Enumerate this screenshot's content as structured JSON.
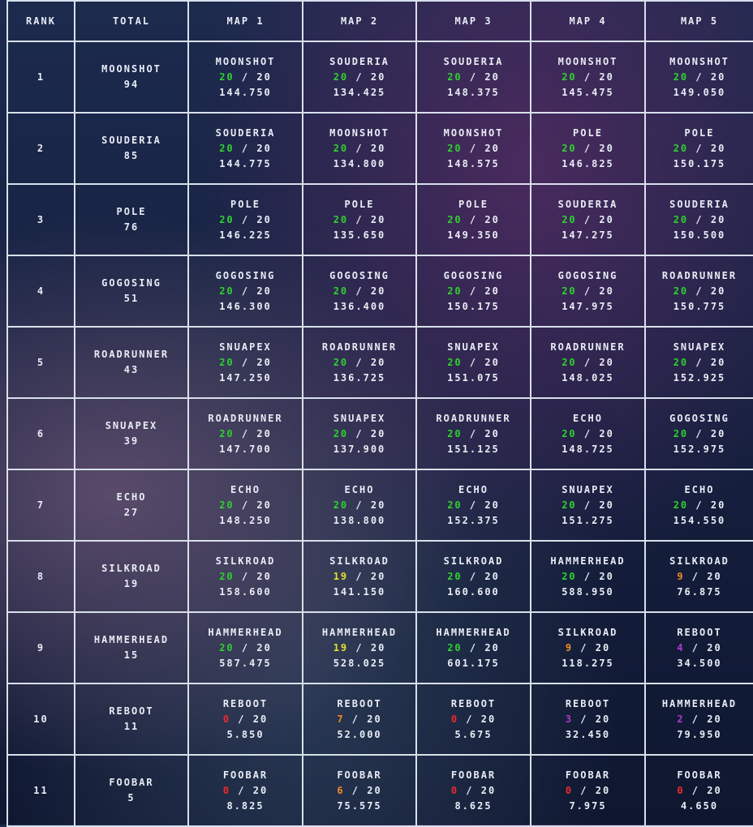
{
  "header": [
    "RANK",
    "TOTAL",
    "MAP 1",
    "MAP 2",
    "MAP 3",
    "MAP 4",
    "MAP 5"
  ],
  "rows": [
    {
      "rank": 1,
      "team": "MOONSHOT",
      "points": 94,
      "maps": [
        {
          "team": "MOONSHOT",
          "score": 20,
          "score_color": "#2fd12f",
          "of": "/ 20",
          "time": "144.750"
        },
        {
          "team": "SOUDERIA",
          "score": 20,
          "score_color": "#2fd12f",
          "of": "/ 20",
          "time": "134.425"
        },
        {
          "team": "SOUDERIA",
          "score": 20,
          "score_color": "#2fd12f",
          "of": "/ 20",
          "time": "148.375"
        },
        {
          "team": "MOONSHOT",
          "score": 20,
          "score_color": "#2fd12f",
          "of": "/ 20",
          "time": "145.475"
        },
        {
          "team": "MOONSHOT",
          "score": 20,
          "score_color": "#2fd12f",
          "of": "/ 20",
          "time": "149.050"
        }
      ]
    },
    {
      "rank": 2,
      "team": "SOUDERIA",
      "points": 85,
      "maps": [
        {
          "team": "SOUDERIA",
          "score": 20,
          "score_color": "#2fd12f",
          "of": "/ 20",
          "time": "144.775"
        },
        {
          "team": "MOONSHOT",
          "score": 20,
          "score_color": "#2fd12f",
          "of": "/ 20",
          "time": "134.800"
        },
        {
          "team": "MOONSHOT",
          "score": 20,
          "score_color": "#2fd12f",
          "of": "/ 20",
          "time": "148.575"
        },
        {
          "team": "POLE",
          "score": 20,
          "score_color": "#2fd12f",
          "of": "/ 20",
          "time": "146.825"
        },
        {
          "team": "POLE",
          "score": 20,
          "score_color": "#2fd12f",
          "of": "/ 20",
          "time": "150.175"
        }
      ]
    },
    {
      "rank": 3,
      "team": "POLE",
      "points": 76,
      "maps": [
        {
          "team": "POLE",
          "score": 20,
          "score_color": "#2fd12f",
          "of": "/ 20",
          "time": "146.225"
        },
        {
          "team": "POLE",
          "score": 20,
          "score_color": "#2fd12f",
          "of": "/ 20",
          "time": "135.650"
        },
        {
          "team": "POLE",
          "score": 20,
          "score_color": "#2fd12f",
          "of": "/ 20",
          "time": "149.350"
        },
        {
          "team": "SOUDERIA",
          "score": 20,
          "score_color": "#2fd12f",
          "of": "/ 20",
          "time": "147.275"
        },
        {
          "team": "SOUDERIA",
          "score": 20,
          "score_color": "#2fd12f",
          "of": "/ 20",
          "time": "150.500"
        }
      ]
    },
    {
      "rank": 4,
      "team": "GOGOSING",
      "points": 51,
      "maps": [
        {
          "team": "GOGOSING",
          "score": 20,
          "score_color": "#2fd12f",
          "of": "/ 20",
          "time": "146.300"
        },
        {
          "team": "GOGOSING",
          "score": 20,
          "score_color": "#2fd12f",
          "of": "/ 20",
          "time": "136.400"
        },
        {
          "team": "GOGOSING",
          "score": 20,
          "score_color": "#2fd12f",
          "of": "/ 20",
          "time": "150.175"
        },
        {
          "team": "GOGOSING",
          "score": 20,
          "score_color": "#2fd12f",
          "of": "/ 20",
          "time": "147.975"
        },
        {
          "team": "ROADRUNNER",
          "score": 20,
          "score_color": "#2fd12f",
          "of": "/ 20",
          "time": "150.775"
        }
      ]
    },
    {
      "rank": 5,
      "team": "ROADRUNNER",
      "points": 43,
      "maps": [
        {
          "team": "SNUAPEX",
          "score": 20,
          "score_color": "#2fd12f",
          "of": "/ 20",
          "time": "147.250"
        },
        {
          "team": "ROADRUNNER",
          "score": 20,
          "score_color": "#2fd12f",
          "of": "/ 20",
          "time": "136.725"
        },
        {
          "team": "SNUAPEX",
          "score": 20,
          "score_color": "#2fd12f",
          "of": "/ 20",
          "time": "151.075"
        },
        {
          "team": "ROADRUNNER",
          "score": 20,
          "score_color": "#2fd12f",
          "of": "/ 20",
          "time": "148.025"
        },
        {
          "team": "SNUAPEX",
          "score": 20,
          "score_color": "#2fd12f",
          "of": "/ 20",
          "time": "152.925"
        }
      ]
    },
    {
      "rank": 6,
      "team": "SNUAPEX",
      "points": 39,
      "maps": [
        {
          "team": "ROADRUNNER",
          "score": 20,
          "score_color": "#2fd12f",
          "of": "/ 20",
          "time": "147.700"
        },
        {
          "team": "SNUAPEX",
          "score": 20,
          "score_color": "#2fd12f",
          "of": "/ 20",
          "time": "137.900"
        },
        {
          "team": "ROADRUNNER",
          "score": 20,
          "score_color": "#2fd12f",
          "of": "/ 20",
          "time": "151.125"
        },
        {
          "team": "ECHO",
          "score": 20,
          "score_color": "#2fd12f",
          "of": "/ 20",
          "time": "148.725"
        },
        {
          "team": "GOGOSING",
          "score": 20,
          "score_color": "#2fd12f",
          "of": "/ 20",
          "time": "152.975"
        }
      ]
    },
    {
      "rank": 7,
      "team": "ECHO",
      "points": 27,
      "maps": [
        {
          "team": "ECHO",
          "score": 20,
          "score_color": "#2fd12f",
          "of": "/ 20",
          "time": "148.250"
        },
        {
          "team": "ECHO",
          "score": 20,
          "score_color": "#2fd12f",
          "of": "/ 20",
          "time": "138.800"
        },
        {
          "team": "ECHO",
          "score": 20,
          "score_color": "#2fd12f",
          "of": "/ 20",
          "time": "152.375"
        },
        {
          "team": "SNUAPEX",
          "score": 20,
          "score_color": "#2fd12f",
          "of": "/ 20",
          "time": "151.275"
        },
        {
          "team": "ECHO",
          "score": 20,
          "score_color": "#2fd12f",
          "of": "/ 20",
          "time": "154.550"
        }
      ]
    },
    {
      "rank": 8,
      "team": "SILKROAD",
      "points": 19,
      "maps": [
        {
          "team": "SILKROAD",
          "score": 20,
          "score_color": "#2fd12f",
          "of": "/ 20",
          "time": "158.600"
        },
        {
          "team": "SILKROAD",
          "score": 19,
          "score_color": "#e4e22a",
          "of": "/ 20",
          "time": "141.150"
        },
        {
          "team": "SILKROAD",
          "score": 20,
          "score_color": "#2fd12f",
          "of": "/ 20",
          "time": "160.600"
        },
        {
          "team": "HAMMERHEAD",
          "score": 20,
          "score_color": "#2fd12f",
          "of": "/ 20",
          "time": "588.950"
        },
        {
          "team": "SILKROAD",
          "score": 9,
          "score_color": "#f08a2a",
          "of": "/ 20",
          "time": "76.875"
        }
      ]
    },
    {
      "rank": 9,
      "team": "HAMMERHEAD",
      "points": 15,
      "maps": [
        {
          "team": "HAMMERHEAD",
          "score": 20,
          "score_color": "#2fd12f",
          "of": "/ 20",
          "time": "587.475"
        },
        {
          "team": "HAMMERHEAD",
          "score": 19,
          "score_color": "#e4e22a",
          "of": "/ 20",
          "time": "528.025"
        },
        {
          "team": "HAMMERHEAD",
          "score": 20,
          "score_color": "#2fd12f",
          "of": "/ 20",
          "time": "601.175"
        },
        {
          "team": "SILKROAD",
          "score": 9,
          "score_color": "#f08a2a",
          "of": "/ 20",
          "time": "118.275"
        },
        {
          "team": "REBOOT",
          "score": 4,
          "score_color": "#b03ad0",
          "of": "/ 20",
          "time": "34.500"
        }
      ]
    },
    {
      "rank": 10,
      "team": "REBOOT",
      "points": 11,
      "maps": [
        {
          "team": "REBOOT",
          "score": 0,
          "score_color": "#ee2a2a",
          "of": "/ 20",
          "time": "5.850"
        },
        {
          "team": "REBOOT",
          "score": 7,
          "score_color": "#f08a2a",
          "of": "/ 20",
          "time": "52.000"
        },
        {
          "team": "REBOOT",
          "score": 0,
          "score_color": "#ee2a2a",
          "of": "/ 20",
          "time": "5.675"
        },
        {
          "team": "REBOOT",
          "score": 3,
          "score_color": "#b03ad0",
          "of": "/ 20",
          "time": "32.450"
        },
        {
          "team": "HAMMERHEAD",
          "score": 2,
          "score_color": "#b03ad0",
          "of": "/ 20",
          "time": "79.950"
        }
      ]
    },
    {
      "rank": 11,
      "team": "FOOBAR",
      "points": 5,
      "maps": [
        {
          "team": "FOOBAR",
          "score": 0,
          "score_color": "#ee2a2a",
          "of": "/ 20",
          "time": "8.825"
        },
        {
          "team": "FOOBAR",
          "score": 6,
          "score_color": "#f08a2a",
          "of": "/ 20",
          "time": "75.575"
        },
        {
          "team": "FOOBAR",
          "score": 0,
          "score_color": "#ee2a2a",
          "of": "/ 20",
          "time": "8.625"
        },
        {
          "team": "FOOBAR",
          "score": 0,
          "score_color": "#ee2a2a",
          "of": "/ 20",
          "time": "7.975"
        },
        {
          "team": "FOOBAR",
          "score": 0,
          "score_color": "#ee2a2a",
          "of": "/ 20",
          "time": "4.650"
        }
      ]
    }
  ]
}
